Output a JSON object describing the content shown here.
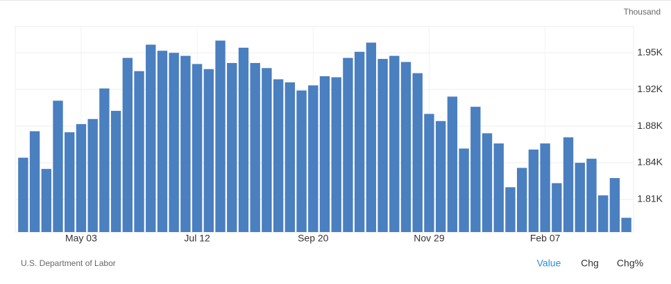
{
  "chart_data": {
    "type": "bar",
    "unit_label": "Thousand",
    "source": "U.S. Department of Labor",
    "buttons": [
      "Value",
      "Chg",
      "Chg%"
    ],
    "color": "#4a7fc0",
    "grid": true,
    "ylim": [
      1776,
      1978
    ],
    "yticks": [
      {
        "value": 1808,
        "label": "1.81K"
      },
      {
        "value": 1844,
        "label": "1.84K"
      },
      {
        "value": 1880,
        "label": "1.88K"
      },
      {
        "value": 1916,
        "label": "1.92K"
      },
      {
        "value": 1952,
        "label": "1.95K"
      }
    ],
    "categories": [
      null,
      null,
      null,
      null,
      null,
      "May 03",
      null,
      null,
      null,
      null,
      null,
      null,
      null,
      null,
      null,
      "Jul 12",
      null,
      null,
      null,
      null,
      null,
      null,
      null,
      null,
      null,
      "Sep 20",
      null,
      null,
      null,
      null,
      null,
      null,
      null,
      null,
      null,
      "Nov 29",
      null,
      null,
      null,
      null,
      null,
      null,
      null,
      null,
      null,
      "Feb 07",
      null,
      null,
      null,
      null,
      null,
      null,
      null
    ],
    "values": [
      1849,
      1875,
      1838,
      1905,
      1874,
      1882,
      1887,
      1917,
      1895,
      1947,
      1934,
      1960,
      1954,
      1952,
      1949,
      1941,
      1936,
      1964,
      1942,
      1957,
      1942,
      1937,
      1926,
      1923,
      1915,
      1920,
      1929,
      1928,
      1947,
      1953,
      1962,
      1946,
      1949,
      1943,
      1932,
      1892,
      1885,
      1909,
      1858,
      1899,
      1873,
      1863,
      1820,
      1839,
      1857,
      1863,
      1824,
      1869,
      1844,
      1848,
      1812,
      1829,
      1790
    ]
  }
}
